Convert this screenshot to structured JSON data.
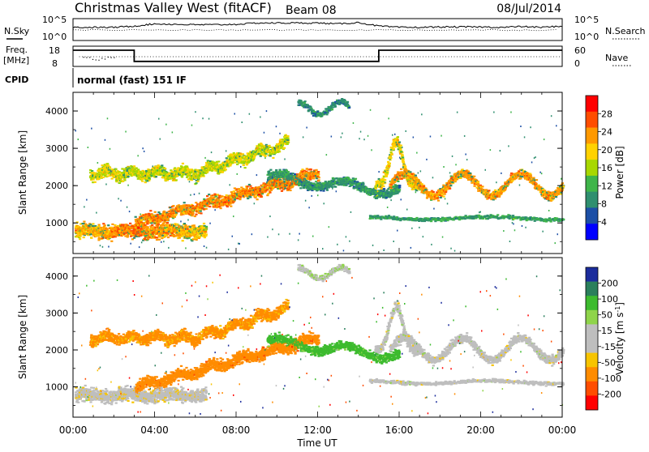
{
  "header": {
    "station": "Christmas Valley West (fitACF)",
    "beam": "Beam 08",
    "date": "08/Jul/2014"
  },
  "panels": {
    "nsky": {
      "left_label": "N.Sky",
      "right_label": "N.Search",
      "left_ticks": [
        "10^5",
        "10^0"
      ],
      "right_ticks": [
        "10^5",
        "10^0"
      ]
    },
    "freq": {
      "left_label_1": "Freq.",
      "left_label_2": "[MHz]",
      "right_label": "Nave",
      "left_ticks": [
        "18",
        "8"
      ],
      "right_ticks": [
        "60",
        "0"
      ]
    },
    "cpid": {
      "label": "CPID",
      "program": "normal (fast) 151 IF"
    }
  },
  "colorbars": {
    "power": {
      "label": "Power [dB]",
      "ticks": [
        "28",
        "24",
        "20",
        "16",
        "12",
        "8",
        "4"
      ],
      "colors": [
        "#ff0000",
        "#ff4d00",
        "#ff9900",
        "#ffd200",
        "#a8d800",
        "#3fb54a",
        "#2f8f6f",
        "#1c4fa6",
        "#0000ff"
      ]
    },
    "velocity": {
      "label": "Velocity [m s",
      "exponent": "-1",
      "unit_close": "]",
      "ticks": [
        "200",
        "100",
        "50",
        "15",
        "-15",
        "-50",
        "-100",
        "-200"
      ],
      "colors": [
        "#1b2c9c",
        "#2a7f5c",
        "#3dbb2e",
        "#8fd44a",
        "#bebebe",
        "#bebebe",
        "#f7c400",
        "#ff8c00",
        "#ff4d00",
        "#ff0000"
      ]
    }
  },
  "chart_data": [
    {
      "type": "heatmap",
      "title": "Power",
      "ylabel": "Slant Range [km]",
      "xlabel": "Time UT",
      "xlim": [
        0,
        24
      ],
      "ylim": [
        180,
        4500
      ],
      "yticks": [
        "1000",
        "2000",
        "3000",
        "4000"
      ],
      "xticks": [
        "00:00",
        "04:00",
        "08:00",
        "12:00",
        "16:00",
        "20:00",
        "00:00"
      ],
      "colorbar": "Power [dB]",
      "scatter_layers": [
        {
          "name": "low-range band",
          "t_range": [
            0,
            6
          ],
          "range_km": [
            500,
            1100
          ],
          "value_db": 26
        },
        {
          "name": "rising band",
          "t_range": [
            3,
            12
          ],
          "range_km": [
            900,
            2300
          ],
          "value_db": 24
        },
        {
          "name": "upper band",
          "t_range": [
            1,
            10
          ],
          "range_km": [
            2300,
            3500
          ],
          "value_db": 18
        },
        {
          "name": "mid band",
          "t_range": [
            9,
            16
          ],
          "range_km": [
            1800,
            2700
          ],
          "value_db": 10
        },
        {
          "name": "oscillating band",
          "t_range": [
            15,
            24
          ],
          "range_km": [
            1600,
            2600
          ],
          "value_db": 22
        }
      ]
    },
    {
      "type": "heatmap",
      "title": "Velocity",
      "ylabel": "Slant Range [km]",
      "xlabel": "Time UT",
      "xlim": [
        0,
        24
      ],
      "ylim": [
        180,
        4500
      ],
      "yticks": [
        "1000",
        "2000",
        "3000",
        "4000"
      ],
      "xticks": [
        "00:00",
        "04:00",
        "08:00",
        "12:00",
        "16:00",
        "20:00",
        "00:00"
      ],
      "colorbar": "Velocity [m s-1]",
      "scatter_layers": [
        {
          "name": "ground scatter",
          "t_range": [
            0,
            24
          ],
          "range_km": [
            500,
            3000
          ],
          "value_ms": 0
        },
        {
          "name": "negative velocities",
          "t_range": [
            4,
            10
          ],
          "range_km": [
            900,
            2500
          ],
          "value_ms": -60
        },
        {
          "name": "positive velocities",
          "t_range": [
            11,
            15
          ],
          "range_km": [
            1600,
            2500
          ],
          "value_ms": 50
        }
      ]
    },
    {
      "type": "line",
      "title": "N.Sky / N.Search",
      "x": [
        0,
        1,
        2,
        3,
        4,
        5,
        6,
        7,
        8,
        9,
        10,
        11,
        12,
        13,
        14,
        15,
        16,
        17,
        18,
        19,
        20,
        21,
        22,
        23,
        24
      ],
      "series": [
        {
          "name": "N.Sky",
          "values": [
            3,
            3,
            3,
            3.3,
            3.8,
            3.7,
            3.6,
            3.6,
            3.7,
            4,
            4,
            4,
            4,
            3.8,
            4.1,
            3.3,
            3,
            3,
            3.1,
            3.1,
            3.1,
            3,
            3.2,
            3,
            3.3
          ]
        }
      ]
    },
    {
      "type": "line",
      "title": "Freq.",
      "x": [
        0,
        3,
        3,
        15,
        15,
        24
      ],
      "series": [
        {
          "name": "Freq.",
          "values": [
            16,
            16,
            10.5,
            10.5,
            16,
            16
          ]
        }
      ]
    }
  ]
}
